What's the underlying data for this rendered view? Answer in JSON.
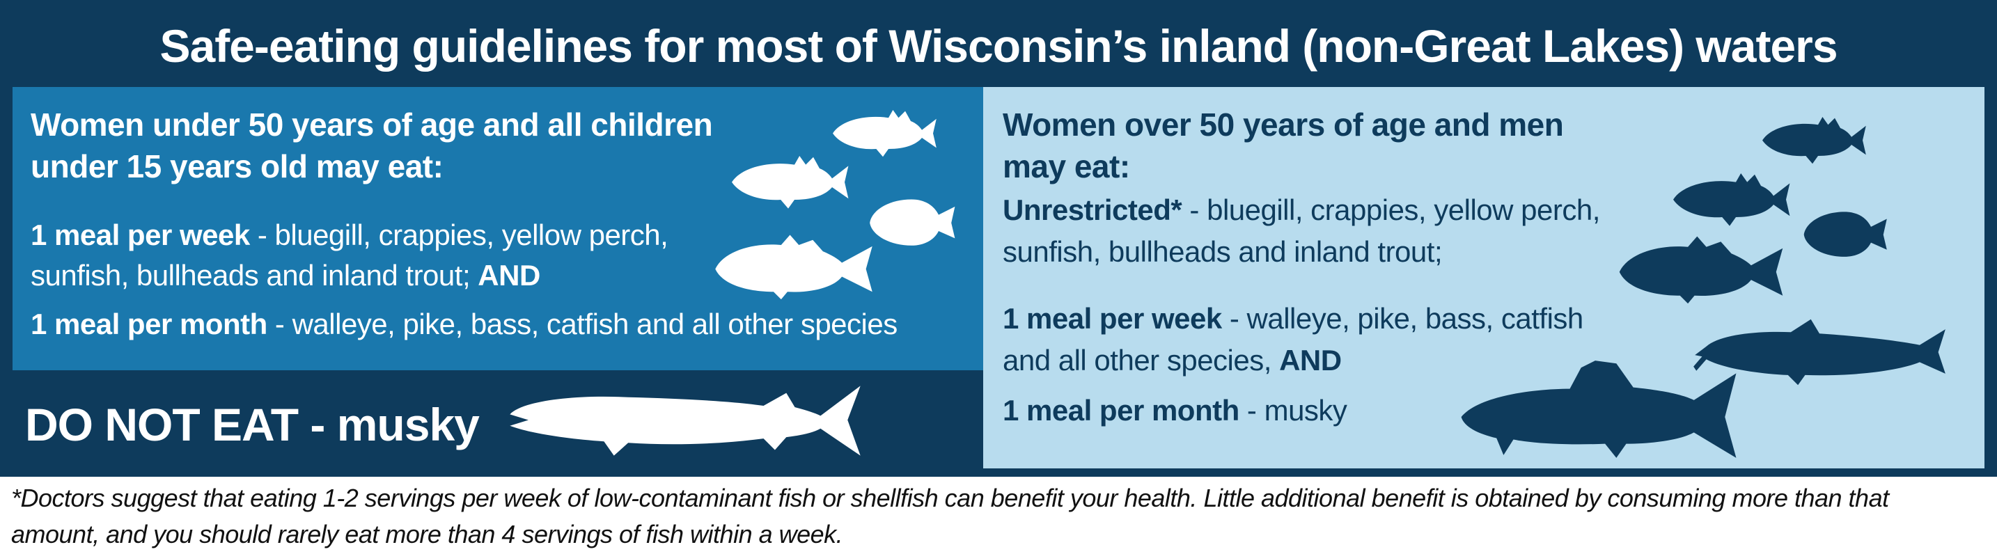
{
  "title": "Safe-eating guidelines for most of Wisconsin’s inland (non-Great Lakes) waters",
  "colors": {
    "banner": "#0e3b5c",
    "left_panel": "#1a78ad",
    "right_panel": "#b8dcee",
    "fish_light": "#ffffff",
    "fish_dark": "#0e3b5c"
  },
  "left": {
    "heading_line1": "Women under 50 years of age and all children",
    "heading_line2": "under 15 years old may eat:",
    "week_bold": "1 meal per week",
    "week_text": " - bluegill, crappies, yellow perch,",
    "week_line2": "sunfish, bullheads and inland trout; ",
    "and": "AND",
    "month_bold": "1 meal per month",
    "month_text": " - walleye, pike, bass, catfish and all other species",
    "icons": [
      "perch-icon",
      "perch-icon",
      "sunfish-icon",
      "crappie-icon",
      "bass-icon"
    ]
  },
  "do_not_eat": "DO NOT EAT - musky",
  "right": {
    "heading_line1": "Women over 50 years of age and men",
    "heading_line2": "may eat:",
    "unrestricted_bold": "Unrestricted*",
    "unrestricted_text": " - bluegill, crappies, yellow perch,",
    "unrestricted_line2": "sunfish, bullheads and inland trout;",
    "week_bold": "1 meal per week",
    "week_text": " - walleye, pike, bass, catfish",
    "week_line2": "and all other species, ",
    "and": "AND",
    "month_bold": "1 meal per month",
    "month_text": " - musky",
    "icons": [
      "crappie-icon",
      "perch-icon",
      "sunfish-icon",
      "bass-icon",
      "catfish-icon",
      "walleye-icon"
    ]
  },
  "footnote_line1": "*Doctors suggest that eating 1-2 servings per week of low-contaminant fish or shellfish can benefit your health. Little additional benefit is obtained by consuming more than that",
  "footnote_line2": "amount, and you should rarely eat more than 4 servings of fish within a week."
}
